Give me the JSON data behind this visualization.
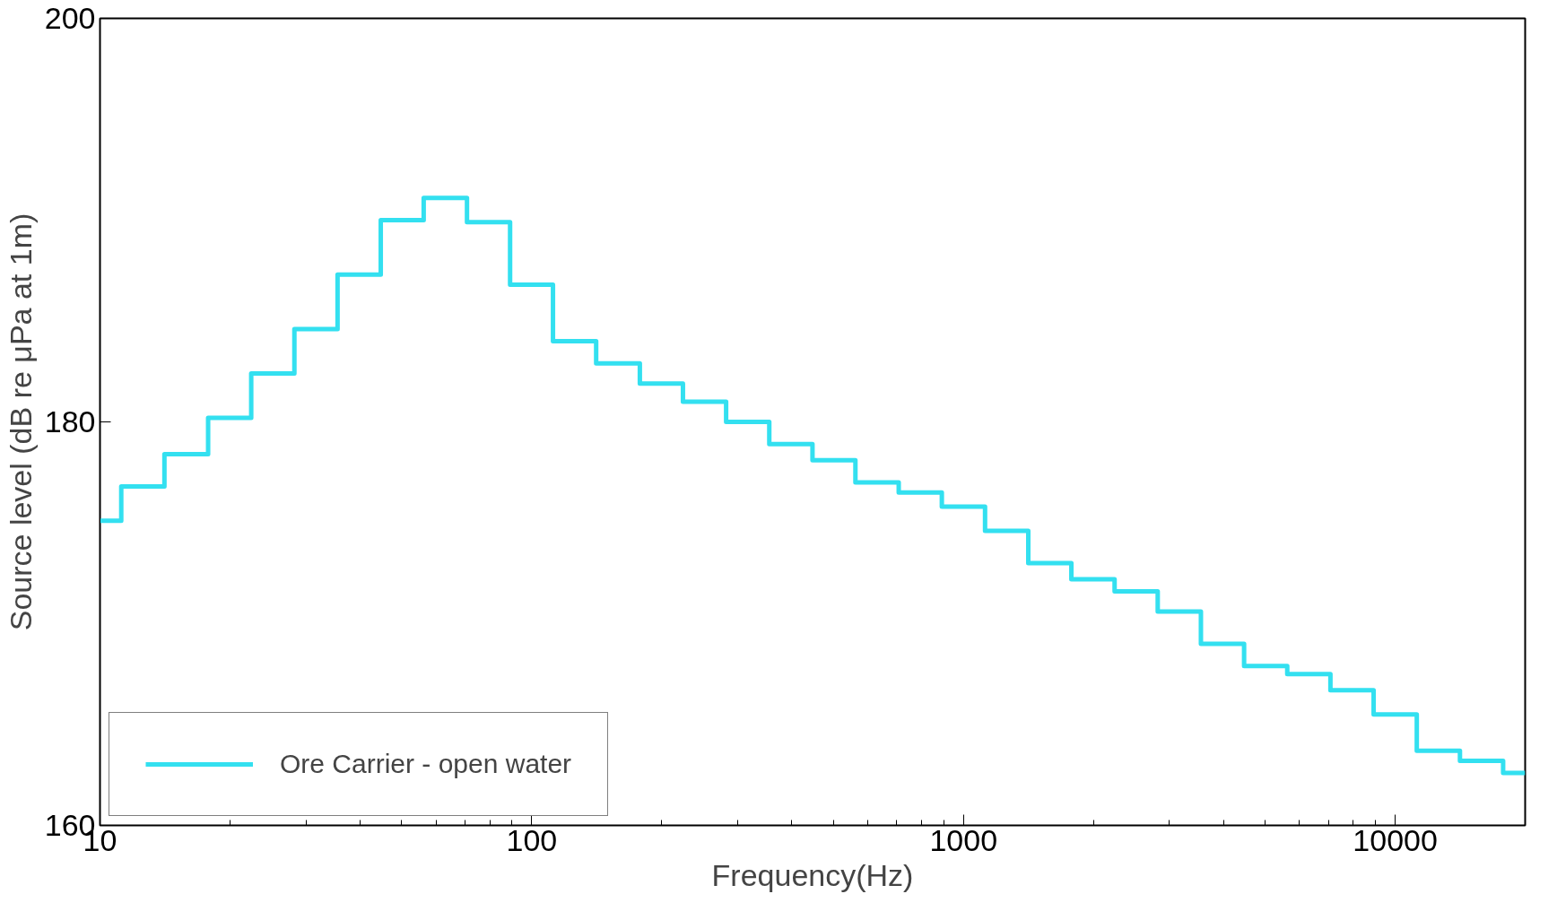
{
  "chart_data": {
    "type": "step",
    "xlabel": "Frequency(Hz)",
    "ylabel": "Source level (dB re μPa at 1m)",
    "x": [
      10,
      11.2,
      14.1,
      17.8,
      22.4,
      28.2,
      35.5,
      44.7,
      56.2,
      70.8,
      89.1,
      112,
      141,
      178,
      224,
      282,
      355,
      447,
      562,
      708,
      891,
      1122,
      1413,
      1778,
      2239,
      2818,
      3548,
      4467,
      5623,
      7079,
      8913,
      11220,
      14125,
      17783,
      20000
    ],
    "series": [
      {
        "name": "Ore Carrier - open water",
        "color": "#33e0f0",
        "values": [
          175.1,
          176.8,
          178.4,
          180.2,
          182.4,
          184.6,
          187.3,
          190.0,
          191.1,
          189.9,
          186.8,
          184.0,
          182.9,
          181.9,
          181.0,
          180.0,
          178.9,
          178.1,
          177.0,
          176.5,
          175.8,
          174.6,
          173.0,
          172.2,
          171.6,
          170.6,
          169.0,
          167.9,
          167.5,
          166.7,
          165.5,
          163.7,
          163.2,
          162.6,
          162.6
        ]
      }
    ],
    "xlim": [
      10,
      20000
    ],
    "ylim": [
      160,
      200
    ],
    "xticks": [
      10,
      100,
      1000,
      10000
    ],
    "yticks": [
      160,
      180,
      200
    ],
    "log": "x",
    "grid": false,
    "legend": "bottom left",
    "line_style": "solid",
    "marker": "none"
  }
}
